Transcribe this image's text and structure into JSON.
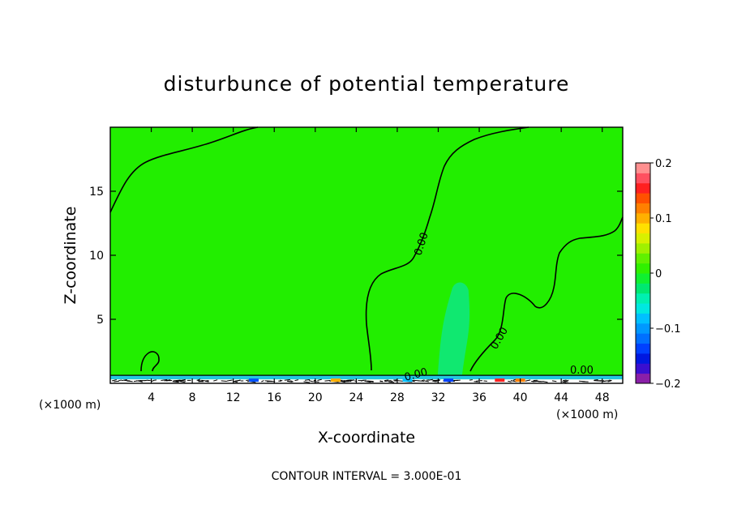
{
  "chart_data": {
    "type": "heatmap",
    "title": "disturbunce of potential temperature",
    "xlabel": "X-coordinate",
    "ylabel": "Z-coordinate",
    "x_unit": "(×1000 m)",
    "y_unit": "(×1000 m)",
    "xlim": [
      0,
      50
    ],
    "ylim": [
      0,
      20
    ],
    "x_ticks": [
      4,
      8,
      12,
      16,
      20,
      24,
      28,
      32,
      36,
      40,
      44,
      48
    ],
    "y_ticks": [
      5,
      10,
      15
    ],
    "contour_interval_text": "CONTOUR INTERVAL = 3.000E-01",
    "contour_labels": [
      "0.00",
      "0.00",
      "0.00",
      "0.00"
    ],
    "field_value_background": 0.0,
    "field_value_plume": -0.03,
    "colorbar": {
      "min": -0.2,
      "max": 0.2,
      "tick_labels": [
        "0.2",
        "0.1",
        "0",
        "−0.1",
        "−0.2"
      ],
      "tick_values": [
        0.2,
        0.1,
        0,
        -0.1,
        -0.2
      ],
      "colors": [
        "#8a1fa8",
        "#3a0fd0",
        "#0018e0",
        "#0040ff",
        "#0070ff",
        "#0098ff",
        "#00c0ff",
        "#00e8e0",
        "#00f0b0",
        "#00e870",
        "#10f030",
        "#30f000",
        "#60f000",
        "#a0f000",
        "#d8f000",
        "#ffe000",
        "#ffb000",
        "#ff8000",
        "#ff5000",
        "#ff2020",
        "#ff5060",
        "#ff9090"
      ]
    },
    "plume": {
      "x_center": 34.0,
      "z_top": 7.8,
      "z_bottom": 0.5,
      "value": -0.03
    }
  }
}
